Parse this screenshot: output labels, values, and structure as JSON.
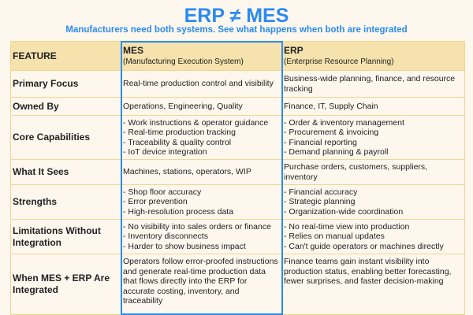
{
  "title": "ERP ≠ MES",
  "subtitle": "Manufacturers need both systems. See what happens when both are integrated",
  "header": {
    "feature": "FEATURE",
    "mes": "MES",
    "mes_sub": "(Manufacturing Execution System)",
    "erp": "ERP",
    "erp_sub": "(Enterprise Resource Planning)"
  },
  "rows": [
    {
      "feature": "Primary Focus",
      "mes": [
        "Real-time production control and visibility"
      ],
      "erp": [
        "Business-wide planning, finance, and resource tracking"
      ]
    },
    {
      "feature": "Owned By",
      "mes": [
        "Operations, Engineering, Quality"
      ],
      "erp": [
        "Finance, IT, Supply Chain"
      ]
    },
    {
      "feature": "Core Capabilities",
      "mes": [
        "- Work instructions & operator guidance",
        "- Real-time production tracking",
        "- Traceability & quality control",
        "- IoT device integration"
      ],
      "erp": [
        "- Order & inventory management",
        "- Procurement & invoicing",
        "- Financial reporting",
        "- Demand planning & payroll"
      ]
    },
    {
      "feature": "What It Sees",
      "mes": [
        "Machines, stations, operators, WIP"
      ],
      "erp": [
        "Purchase orders, customers, suppliers, inventory"
      ]
    },
    {
      "feature": "Strengths",
      "mes": [
        "- Shop floor accuracy",
        "- Error prevention",
        "- High-resolution process data"
      ],
      "erp": [
        "- Financial accuracy",
        "- Strategic planning",
        "- Organization-wide coordination"
      ]
    },
    {
      "feature": "Limitations Without Integration",
      "mes": [
        "- No visibility into sales orders or finance",
        "- Inventory disconnects",
        "- Harder to show business impact"
      ],
      "erp": [
        "- No real-time view into production",
        "- Relies on manual updates",
        "- Can't guide operators or machines directly"
      ]
    },
    {
      "feature": "When MES + ERP Are Integrated",
      "mes": [
        "Operators follow error-proofed instructions and generate real-time production data that flows directly into the ERP for accurate costing, inventory, and traceability"
      ],
      "erp": [
        "Finance teams gain instant visibility into production status, enabling better forecasting, fewer surprises, and faster decision-making"
      ]
    }
  ]
}
